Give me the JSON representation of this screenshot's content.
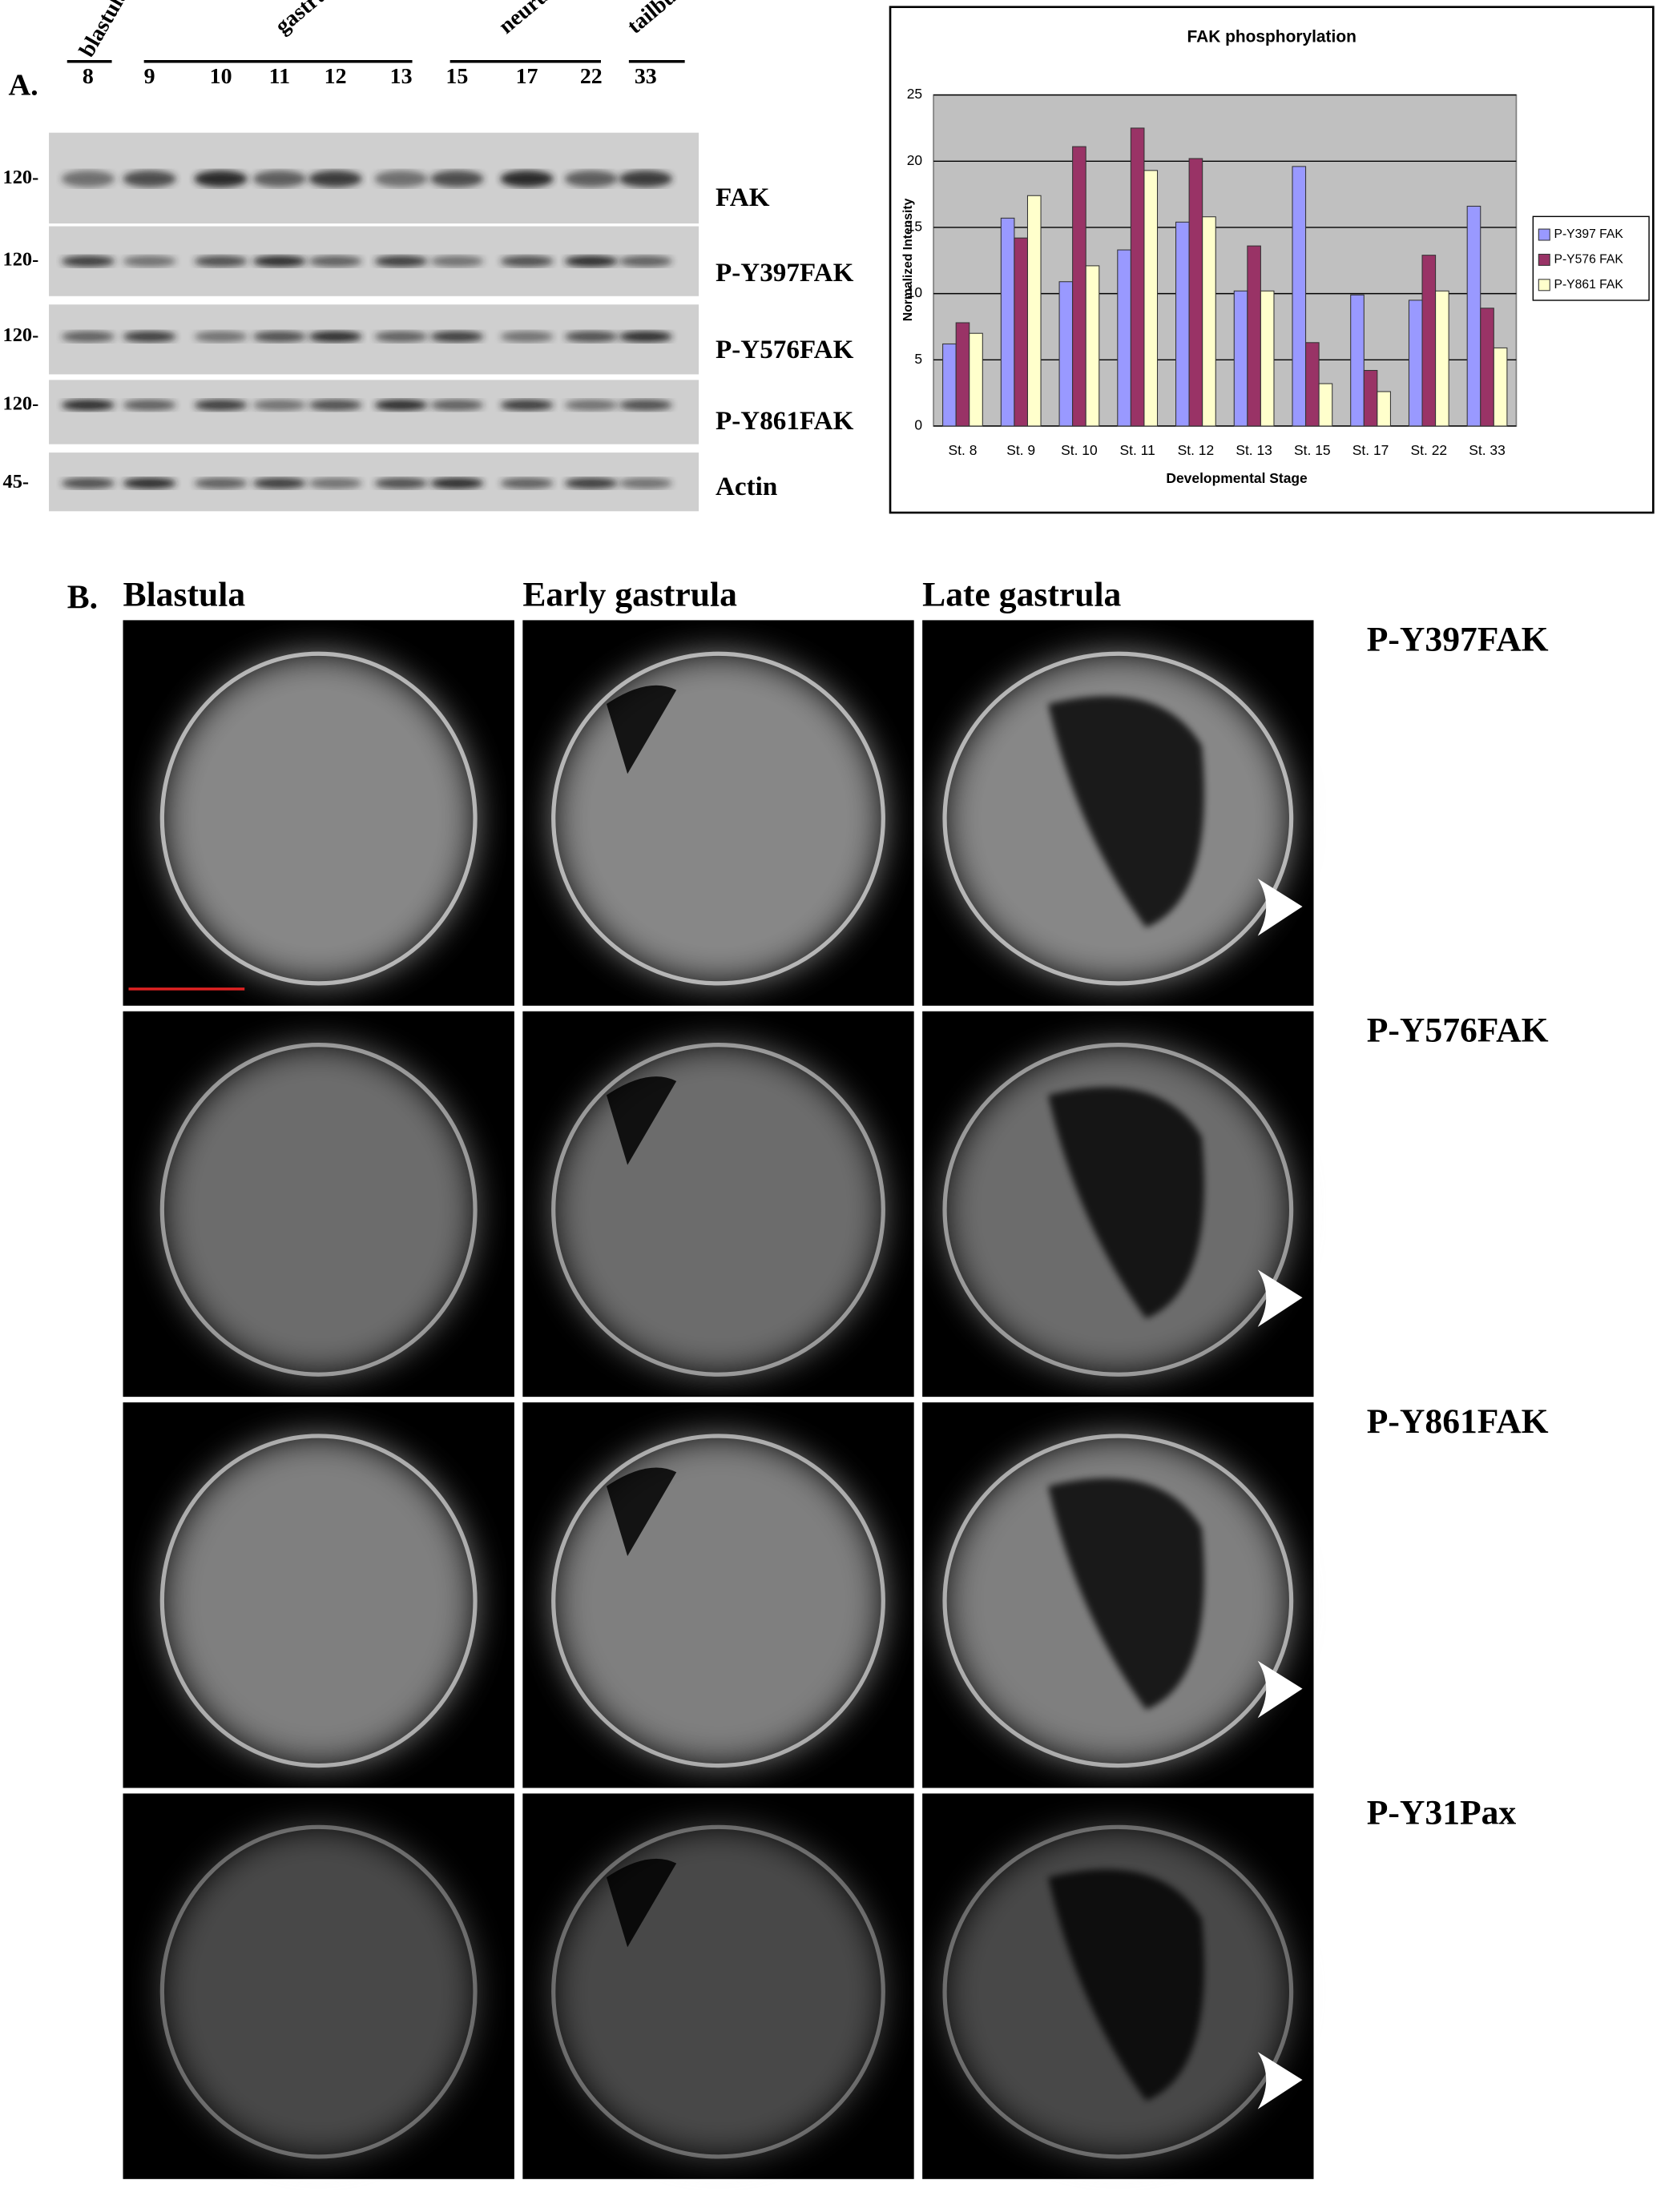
{
  "figure": {
    "panel_a": {
      "label": "A.",
      "stage_groups": [
        "blastula",
        "gastrula",
        "neurula",
        "tailbud"
      ],
      "lanes": [
        "8",
        "9",
        "10",
        "11",
        "12",
        "13",
        "15",
        "17",
        "22",
        "33"
      ],
      "mw_markers": [
        "120-",
        "120-",
        "120-",
        "120-",
        "45-"
      ],
      "blot_labels": [
        "FAK",
        "P-Y397FAK",
        "P-Y576FAK",
        "P-Y861FAK",
        "Actin"
      ]
    },
    "panel_b": {
      "label": "B.",
      "columns": [
        "Blastula",
        "Early gastrula",
        "Late gastrula"
      ],
      "rows": [
        "P-Y397FAK",
        "P-Y576FAK",
        "P-Y861FAK",
        "P-Y31Pax"
      ]
    }
  },
  "chart_data": {
    "type": "bar",
    "title": "FAK phosphorylation",
    "x_label": "Developmental Stage",
    "y_label": "Normalized Intensity",
    "categories": [
      "St. 8",
      "St. 9",
      "St. 10",
      "St. 11",
      "St. 12",
      "St. 13",
      "St. 15",
      "St. 17",
      "St. 22",
      "St. 33"
    ],
    "series": [
      {
        "name": "P-Y397 FAK",
        "color": "#9999ff",
        "values": [
          6.2,
          15.7,
          10.9,
          13.3,
          15.4,
          10.2,
          19.6,
          9.9,
          9.5,
          16.6
        ]
      },
      {
        "name": "P-Y576 FAK",
        "color": "#993366",
        "values": [
          7.8,
          14.2,
          21.1,
          22.5,
          20.2,
          13.6,
          6.3,
          4.2,
          12.9,
          8.9
        ]
      },
      {
        "name": "P-Y861 FAK",
        "color": "#ffffcc",
        "values": [
          7.0,
          17.4,
          12.1,
          19.3,
          15.8,
          10.2,
          3.2,
          2.6,
          10.2,
          5.9
        ]
      }
    ],
    "ylim": [
      0,
      25
    ],
    "yticks": [
      0,
      5,
      10,
      15,
      20,
      25
    ],
    "grid": true,
    "legend": "right",
    "background": "#c0c0c0"
  }
}
